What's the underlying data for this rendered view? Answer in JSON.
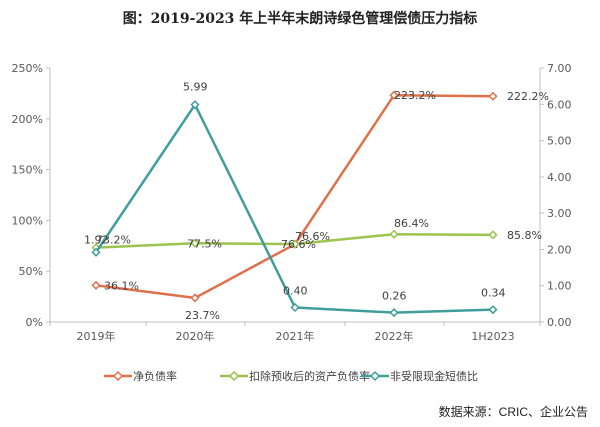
{
  "title": "图：2019-2023 年上半年末朗诗绿色管理偿债压力指标",
  "source": "数据来源：CRIC、企业公告",
  "chart_data": {
    "type": "line",
    "categories": [
      "2019年",
      "2020年",
      "2021年",
      "2022年",
      "1H2023"
    ],
    "left_axis": {
      "ylim": [
        0,
        250
      ],
      "ticks": [
        0,
        50,
        100,
        150,
        200,
        250
      ],
      "tick_labels": [
        "0%",
        "50%",
        "100%",
        "150%",
        "200%",
        "250%"
      ]
    },
    "right_axis": {
      "ylim": [
        0,
        7
      ],
      "ticks": [
        0,
        1,
        2,
        3,
        4,
        5,
        6,
        7
      ],
      "tick_labels": [
        "0.00",
        "1.00",
        "2.00",
        "3.00",
        "4.00",
        "5.00",
        "6.00",
        "7.00"
      ]
    },
    "series": [
      {
        "name": "净负债率",
        "axis": "left",
        "color": "#E0704A",
        "values": [
          36.1,
          23.7,
          76.6,
          223.2,
          222.2
        ],
        "labels": [
          "36.1%",
          "23.7%",
          "76.6%",
          "223.2%",
          "222.2%"
        ]
      },
      {
        "name": "扣除预收后的资产负债率",
        "axis": "left",
        "color": "#9DC34F",
        "values": [
          73.2,
          77.5,
          76.6,
          86.4,
          85.8
        ],
        "labels": [
          "73.2%",
          "77.5%",
          "76.6%",
          "86.4%",
          "85.8%"
        ]
      },
      {
        "name": "非受限现金短债比",
        "axis": "right",
        "color": "#3F9E9C",
        "values": [
          1.92,
          5.99,
          0.4,
          0.26,
          0.34
        ],
        "labels": [
          "1.92",
          "5.99",
          "0.40",
          "0.26",
          "0.34"
        ]
      }
    ],
    "grid": false,
    "legend_position": "bottom"
  }
}
